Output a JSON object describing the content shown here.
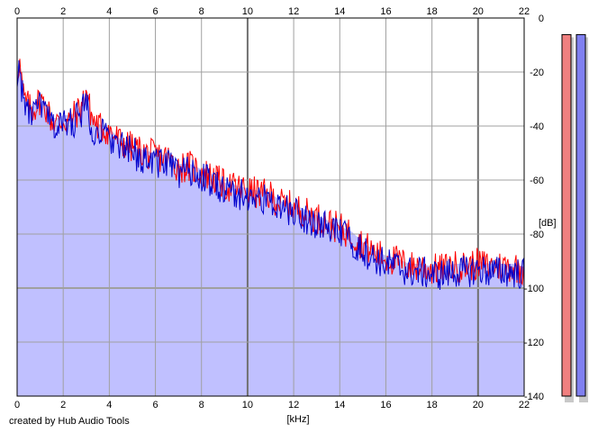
{
  "credit": "created by Hub Audio Tools",
  "chart_data": {
    "type": "area",
    "title": "",
    "xlabel": "[kHz]",
    "ylabel": "[dB]",
    "xlim": [
      0,
      22
    ],
    "ylim": [
      -140,
      0
    ],
    "x_ticks": [
      0,
      2,
      4,
      6,
      8,
      10,
      12,
      14,
      16,
      18,
      20,
      22
    ],
    "y_ticks": [
      0,
      -20,
      -40,
      -60,
      -80,
      -100,
      -120,
      -140
    ],
    "grid": true,
    "colors": {
      "fill": "#c0c0ff",
      "series_red": "#ff0000",
      "series_blue": "#0000cc",
      "grid": "#a0a0a0",
      "major_grid": "#707070"
    },
    "x": [
      0.0,
      0.1,
      0.2,
      0.3,
      0.5,
      0.7,
      1.0,
      1.3,
      1.5,
      1.8,
      2.0,
      2.3,
      2.5,
      2.8,
      2.9,
      3.0,
      3.1,
      3.3,
      3.5,
      4.0,
      4.5,
      5.0,
      5.5,
      6.0,
      6.5,
      7.0,
      7.5,
      8.0,
      8.5,
      9.0,
      9.5,
      10.0,
      10.5,
      11.0,
      11.5,
      12.0,
      12.5,
      13.0,
      13.5,
      14.0,
      14.5,
      15.0,
      15.5,
      16.0,
      16.5,
      17.0,
      17.5,
      18.0,
      18.5,
      19.0,
      19.5,
      20.0,
      20.5,
      21.0,
      21.5,
      22.0
    ],
    "series": [
      {
        "name": "",
        "color": "#ff0000",
        "values": [
          -20,
          -16,
          -24,
          -30,
          -33,
          -34,
          -30,
          -34,
          -38,
          -39,
          -38,
          -38,
          -36,
          -33,
          -30,
          -26,
          -32,
          -38,
          -40,
          -42,
          -46,
          -48,
          -50,
          -51,
          -52,
          -55,
          -55,
          -57,
          -59,
          -62,
          -63,
          -64,
          -65,
          -66,
          -69,
          -70,
          -72,
          -74,
          -76,
          -78,
          -80,
          -84,
          -87,
          -89,
          -90,
          -92,
          -92,
          -93,
          -93,
          -92,
          -92,
          -91,
          -92,
          -92,
          -92,
          -93
        ]
      },
      {
        "name": "",
        "color": "#0000cc",
        "values": [
          -22,
          -18,
          -26,
          -32,
          -35,
          -36,
          -32,
          -36,
          -40,
          -40,
          -39,
          -39,
          -38,
          -35,
          -33,
          -29,
          -35,
          -41,
          -42,
          -44,
          -48,
          -50,
          -52,
          -53,
          -54,
          -57,
          -57,
          -59,
          -61,
          -64,
          -65,
          -66,
          -67,
          -68,
          -71,
          -72,
          -74,
          -76,
          -78,
          -80,
          -82,
          -86,
          -89,
          -91,
          -92,
          -94,
          -94,
          -95,
          -95,
          -94,
          -94,
          -93,
          -94,
          -94,
          -94,
          -95
        ]
      }
    ],
    "level_meters": [
      {
        "color": "#f08080",
        "level": 0.97
      },
      {
        "color": "#8080f0",
        "level": 0.97
      }
    ]
  }
}
